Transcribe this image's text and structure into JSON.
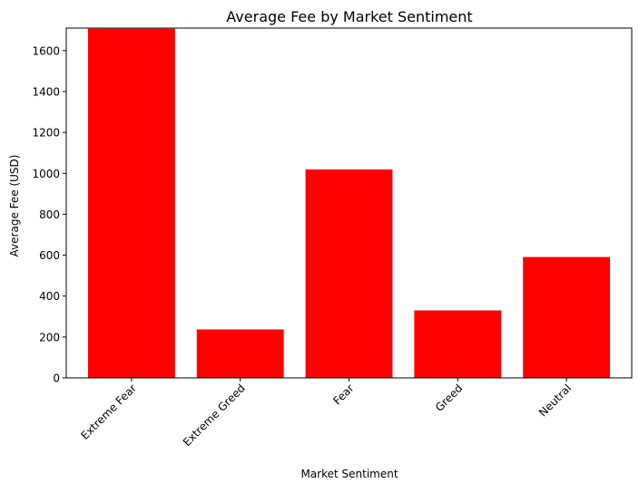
{
  "chart_data": {
    "type": "bar",
    "title": "Average Fee by Market Sentiment",
    "xlabel": "Market Sentiment",
    "ylabel": "Average Fee (USD)",
    "categories": [
      "Extreme Fear",
      "Extreme Greed",
      "Fear",
      "Greed",
      "Neutral"
    ],
    "values": [
      1707,
      237,
      1019,
      330,
      591
    ],
    "ylim": [
      0,
      1710
    ],
    "yticks": [
      0,
      200,
      400,
      600,
      800,
      1000,
      1200,
      1400,
      1600
    ],
    "bar_color": "#ff0000",
    "grid": false,
    "legend": false,
    "xtick_rotation_deg": 45
  }
}
